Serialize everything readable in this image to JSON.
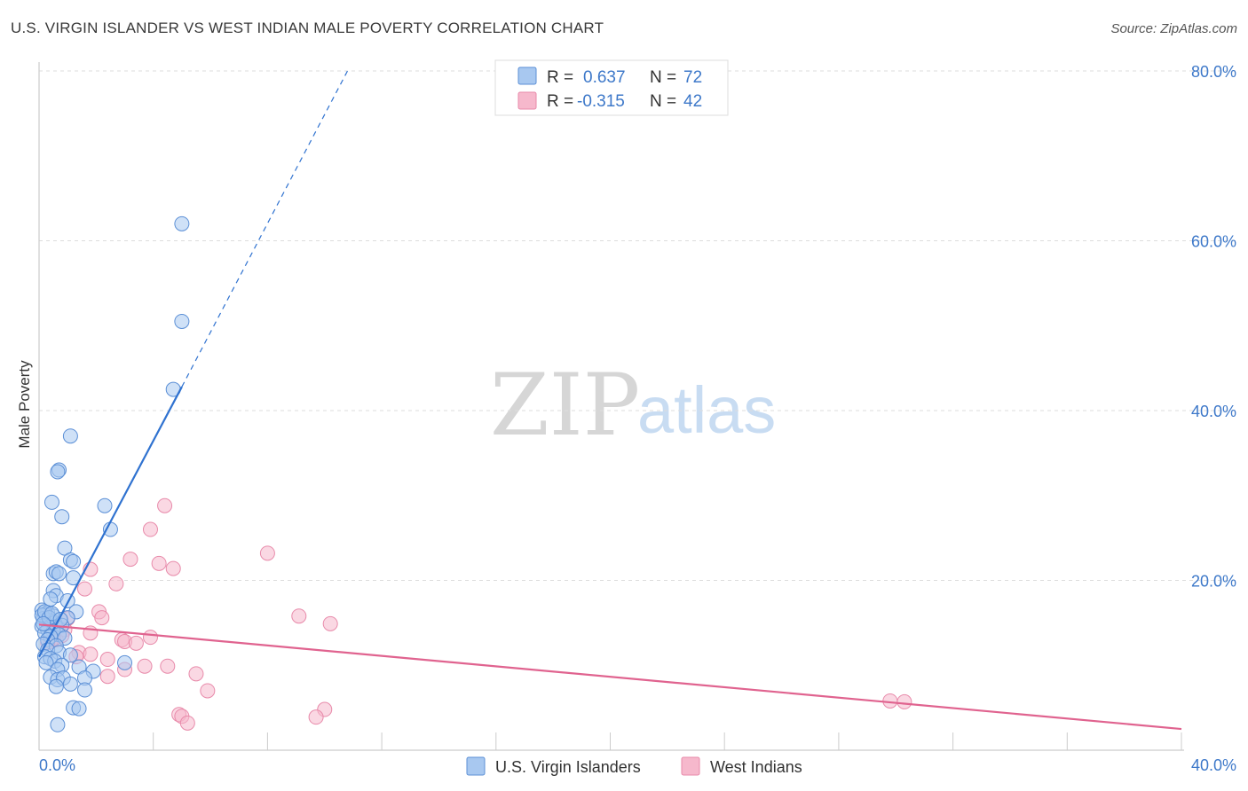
{
  "title": "U.S. VIRGIN ISLANDER VS WEST INDIAN MALE POVERTY CORRELATION CHART",
  "source": "Source: ZipAtlas.com",
  "watermark": {
    "zip": "ZIP",
    "atlas": "atlas"
  },
  "colors": {
    "blue_fill": "#a8c8f0",
    "blue_stroke": "#5b8fd6",
    "blue_line": "#2f72d0",
    "pink_fill": "#f6b8cc",
    "pink_stroke": "#e88aaa",
    "pink_line": "#e0638f",
    "accent_text": "#3d78c9",
    "grid": "#dddddd"
  },
  "legend": {
    "rows": [
      {
        "r_label": "R =",
        "r_value": "0.637",
        "n_label": "N =",
        "n_value": "72"
      },
      {
        "r_label": "R =",
        "r_value": "-0.315",
        "n_label": "N =",
        "n_value": "42"
      }
    ]
  },
  "chart_data": {
    "type": "scatter",
    "title": "U.S. VIRGIN ISLANDER VS WEST INDIAN MALE POVERTY CORRELATION CHART",
    "xlabel": "",
    "ylabel": "Male Poverty",
    "xlim": [
      0,
      40
    ],
    "ylim": [
      0,
      80
    ],
    "x_tick_labels": {
      "min": "0.0%",
      "max": "40.0%"
    },
    "y_ticks": [
      20,
      40,
      60,
      80
    ],
    "y_tick_labels": [
      "20.0%",
      "40.0%",
      "60.0%",
      "80.0%"
    ],
    "grid": true,
    "legend_position": "top-center",
    "series": [
      {
        "name": "U.S. Virgin Islanders",
        "R": 0.637,
        "N": 72,
        "trend": {
          "x0": 0.0,
          "y0": 11.0,
          "x1": 5.0,
          "y1": 42.8,
          "dash_x1": 10.8,
          "dash_y1": 80.0
        },
        "points": [
          [
            5.0,
            62.0
          ],
          [
            5.0,
            50.5
          ],
          [
            4.7,
            42.5
          ],
          [
            1.1,
            37.0
          ],
          [
            0.7,
            33.0
          ],
          [
            0.65,
            32.8
          ],
          [
            0.45,
            29.2
          ],
          [
            2.3,
            28.8
          ],
          [
            0.8,
            27.5
          ],
          [
            2.5,
            26.0
          ],
          [
            0.9,
            23.8
          ],
          [
            1.1,
            22.4
          ],
          [
            1.2,
            22.2
          ],
          [
            0.5,
            20.8
          ],
          [
            0.6,
            21.0
          ],
          [
            1.2,
            20.3
          ],
          [
            0.7,
            20.8
          ],
          [
            0.5,
            18.8
          ],
          [
            0.6,
            18.2
          ],
          [
            0.4,
            17.8
          ],
          [
            1.0,
            17.6
          ],
          [
            0.1,
            16.5
          ],
          [
            1.3,
            16.3
          ],
          [
            0.3,
            16.2
          ],
          [
            0.2,
            16.0
          ],
          [
            0.5,
            15.8
          ],
          [
            1.0,
            15.6
          ],
          [
            0.15,
            15.5
          ],
          [
            0.35,
            15.3
          ],
          [
            0.45,
            15.2
          ],
          [
            0.55,
            15.0
          ],
          [
            0.25,
            14.8
          ],
          [
            0.1,
            14.6
          ],
          [
            0.6,
            14.5
          ],
          [
            0.8,
            14.7
          ],
          [
            0.3,
            14.2
          ],
          [
            0.5,
            14.0
          ],
          [
            0.2,
            13.8
          ],
          [
            0.7,
            13.6
          ],
          [
            0.4,
            13.4
          ],
          [
            0.9,
            13.2
          ],
          [
            0.3,
            13.0
          ],
          [
            0.15,
            12.5
          ],
          [
            0.6,
            12.3
          ],
          [
            0.3,
            11.8
          ],
          [
            0.7,
            11.5
          ],
          [
            1.1,
            11.2
          ],
          [
            0.2,
            11.0
          ],
          [
            0.4,
            10.8
          ],
          [
            0.55,
            10.5
          ],
          [
            0.25,
            10.3
          ],
          [
            0.8,
            10.0
          ],
          [
            1.4,
            9.8
          ],
          [
            0.65,
            9.5
          ],
          [
            3.0,
            10.3
          ],
          [
            1.9,
            9.3
          ],
          [
            0.4,
            8.6
          ],
          [
            0.65,
            8.3
          ],
          [
            0.85,
            8.5
          ],
          [
            1.6,
            8.5
          ],
          [
            0.6,
            7.5
          ],
          [
            1.1,
            7.8
          ],
          [
            1.6,
            7.1
          ],
          [
            1.2,
            5.0
          ],
          [
            1.4,
            4.9
          ],
          [
            0.65,
            3.0
          ],
          [
            0.1,
            15.9
          ],
          [
            0.2,
            16.3
          ],
          [
            0.35,
            15.6
          ],
          [
            0.45,
            16.1
          ],
          [
            0.15,
            14.9
          ],
          [
            0.75,
            15.4
          ]
        ]
      },
      {
        "name": "West Indians",
        "R": -0.315,
        "N": 42,
        "trend": {
          "x0": 0.0,
          "y0": 14.8,
          "x1": 40.0,
          "y1": 2.5
        },
        "points": [
          [
            4.4,
            28.8
          ],
          [
            3.9,
            26.0
          ],
          [
            8.0,
            23.2
          ],
          [
            3.2,
            22.5
          ],
          [
            4.2,
            22.0
          ],
          [
            4.7,
            21.4
          ],
          [
            1.8,
            21.3
          ],
          [
            2.7,
            19.6
          ],
          [
            1.6,
            19.0
          ],
          [
            2.1,
            16.3
          ],
          [
            9.1,
            15.8
          ],
          [
            2.2,
            15.6
          ],
          [
            10.2,
            14.9
          ],
          [
            1.0,
            15.5
          ],
          [
            1.8,
            13.8
          ],
          [
            3.9,
            13.3
          ],
          [
            2.9,
            13.0
          ],
          [
            3.0,
            12.8
          ],
          [
            3.4,
            12.6
          ],
          [
            0.6,
            13.0
          ],
          [
            0.4,
            12.8
          ],
          [
            1.4,
            11.5
          ],
          [
            1.8,
            11.3
          ],
          [
            1.3,
            11.0
          ],
          [
            2.4,
            10.7
          ],
          [
            3.7,
            9.9
          ],
          [
            4.5,
            9.9
          ],
          [
            3.0,
            9.5
          ],
          [
            5.5,
            9.0
          ],
          [
            2.4,
            8.7
          ],
          [
            5.9,
            7.0
          ],
          [
            4.9,
            4.2
          ],
          [
            5.0,
            4.0
          ],
          [
            5.2,
            3.2
          ],
          [
            10.0,
            4.8
          ],
          [
            9.7,
            3.9
          ],
          [
            29.8,
            5.8
          ],
          [
            30.3,
            5.7
          ],
          [
            0.9,
            14.2
          ],
          [
            0.8,
            13.5
          ],
          [
            0.5,
            13.1
          ],
          [
            0.3,
            12.7
          ]
        ]
      }
    ]
  }
}
